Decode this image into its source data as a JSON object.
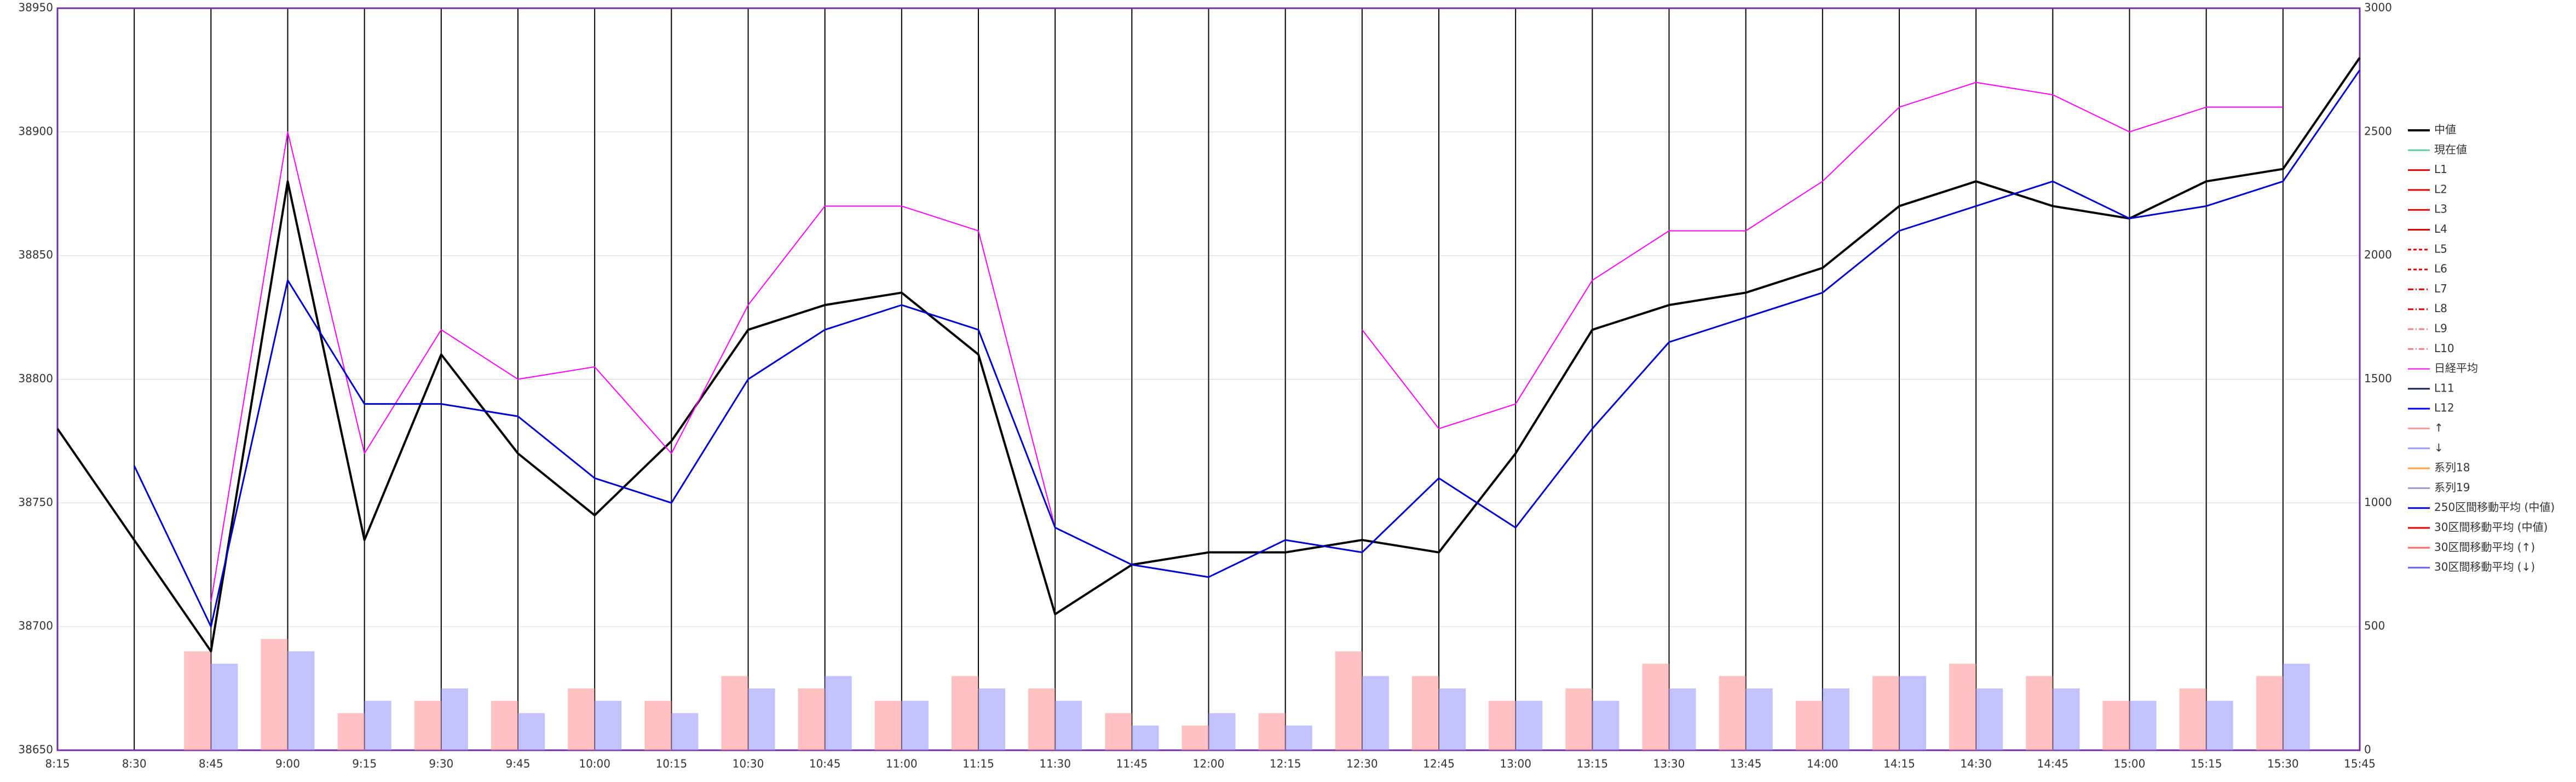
{
  "chart_data": {
    "type": "line",
    "categories": [
      "8:15",
      "8:30",
      "8:45",
      "9:00",
      "9:15",
      "9:30",
      "9:45",
      "10:00",
      "10:15",
      "10:30",
      "10:45",
      "11:00",
      "11:15",
      "11:30",
      "11:45",
      "12:00",
      "12:15",
      "12:30",
      "12:45",
      "13:00",
      "13:15",
      "13:30",
      "13:45",
      "14:00",
      "14:15",
      "14:30",
      "14:45",
      "15:00",
      "15:15",
      "15:30",
      "15:45"
    ],
    "ylim": [
      38650,
      38950
    ],
    "yticks": [
      38650,
      38700,
      38750,
      38800,
      38850,
      38900,
      38950
    ],
    "y2lim": [
      0,
      3000
    ],
    "y2ticks": [
      0,
      500,
      1000,
      1500,
      2000,
      2500,
      3000
    ],
    "grid": true,
    "series": [
      {
        "name": "中値",
        "color": "#000000",
        "width": 4,
        "values": [
          38780,
          38735,
          38690,
          38880,
          38735,
          38810,
          38770,
          38745,
          38775,
          38820,
          38830,
          38835,
          38810,
          38705,
          38725,
          38730,
          38730,
          38735,
          38730,
          38770,
          38820,
          38830,
          38835,
          38845,
          38870,
          38880,
          38870,
          38865,
          38880,
          38885,
          38930
        ]
      },
      {
        "name": "現在値",
        "color": "#66cdaa"
      },
      {
        "name": "L1",
        "color": "#e00000"
      },
      {
        "name": "L2",
        "color": "#e00000"
      },
      {
        "name": "L3",
        "color": "#e00000"
      },
      {
        "name": "L4",
        "color": "#e00000"
      },
      {
        "name": "L5",
        "color": "#e00000",
        "dash": "6 4"
      },
      {
        "name": "L6",
        "color": "#e00000",
        "dash": "6 4"
      },
      {
        "name": "L7",
        "color": "#e00000",
        "dash": "10 4 2 4"
      },
      {
        "name": "L8",
        "color": "#e00000",
        "dash": "10 4 2 4"
      },
      {
        "name": "L9",
        "color": "#f08080",
        "dash": "10 4 2 4"
      },
      {
        "name": "L10",
        "color": "#f08080",
        "dash": "10 4 2 4"
      },
      {
        "name": "日経平均",
        "color": "#ff00ff",
        "axis": "y2",
        "width": 2,
        "values": [
          null,
          null,
          600,
          2500,
          1200,
          1700,
          1500,
          1550,
          1200,
          1800,
          2200,
          2200,
          2100,
          900,
          null,
          null,
          null,
          1700,
          1300,
          1400,
          1900,
          2100,
          2100,
          2300,
          2600,
          2700,
          2650,
          2500,
          2600,
          2600,
          null
        ]
      },
      {
        "name": "L11",
        "color": "#1a1a5e"
      },
      {
        "name": "L12",
        "color": "#0000ff"
      },
      {
        "name": "↑",
        "color": "#ff9999",
        "axis": "y2",
        "kind": "bar",
        "values": [
          0,
          0,
          400,
          450,
          150,
          200,
          200,
          250,
          200,
          300,
          250,
          200,
          300,
          250,
          150,
          100,
          150,
          400,
          300,
          200,
          250,
          350,
          300,
          200,
          300,
          350,
          300,
          200,
          250,
          300,
          0
        ]
      },
      {
        "name": "↓",
        "color": "#9999ff",
        "axis": "y2",
        "kind": "bar",
        "values": [
          0,
          0,
          350,
          400,
          200,
          250,
          150,
          200,
          150,
          250,
          300,
          200,
          250,
          200,
          100,
          150,
          100,
          300,
          250,
          200,
          200,
          250,
          250,
          250,
          300,
          250,
          250,
          200,
          200,
          350,
          0
        ]
      },
      {
        "name": "系列18",
        "color": "#ffa040"
      },
      {
        "name": "系列19",
        "color": "#9999cc"
      },
      {
        "name": "250区間移動平均 (中値)",
        "color": "#0000cc",
        "width": 3,
        "values": [
          null,
          38765,
          38700,
          38840,
          38790,
          38790,
          38785,
          38760,
          38750,
          38800,
          38820,
          38830,
          38820,
          38740,
          38725,
          38720,
          38735,
          38730,
          38760,
          38740,
          38780,
          38815,
          38825,
          38835,
          38860,
          38870,
          38880,
          38865,
          38870,
          38880,
          38925
        ]
      },
      {
        "name": "30区間移動平均 (中値)",
        "color": "#e00000"
      },
      {
        "name": "30区間移動平均 (↑)",
        "color": "#ff6666"
      },
      {
        "name": "30区間移動平均 (↓)",
        "color": "#6666ff"
      }
    ]
  }
}
